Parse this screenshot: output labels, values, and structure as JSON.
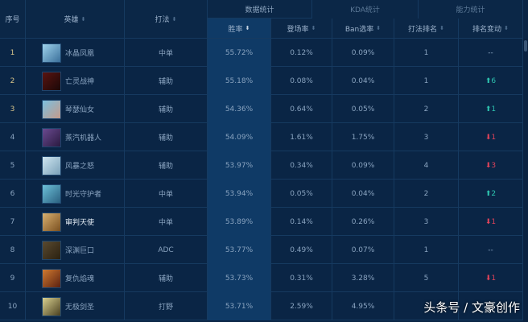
{
  "header": {
    "index": "序号",
    "hero": "英雄",
    "role": "打法",
    "groups": [
      {
        "label": "数据统计",
        "active": true
      },
      {
        "label": "KDA统计",
        "active": false
      },
      {
        "label": "能力统计",
        "active": false
      }
    ],
    "columns": [
      "胜率",
      "登场率",
      "Ban选率",
      "打法排名",
      "排名变动"
    ],
    "sorted_column": "胜率"
  },
  "colors": {
    "background": "#0a2545",
    "highlight": "#0f3a66",
    "up": "#2ec4b0",
    "down": "#e0435a"
  },
  "rows": [
    {
      "index": "1",
      "hero": "冰晶凤凰",
      "role": "中单",
      "win": "55.72%",
      "pick": "0.12%",
      "ban": "0.09%",
      "rank": "1",
      "change": "--",
      "dir": "none",
      "avatar": [
        "#9fd3ec",
        "#3a6f9a"
      ]
    },
    {
      "index": "2",
      "hero": "亡灵战神",
      "role": "辅助",
      "win": "55.18%",
      "pick": "0.08%",
      "ban": "0.04%",
      "rank": "1",
      "change": "6",
      "dir": "up",
      "avatar": [
        "#5a1410",
        "#1a0808"
      ]
    },
    {
      "index": "3",
      "hero": "琴瑟仙女",
      "role": "辅助",
      "win": "54.36%",
      "pick": "0.64%",
      "ban": "0.05%",
      "rank": "2",
      "change": "1",
      "dir": "up",
      "avatar": [
        "#7cc0e0",
        "#c59a8a"
      ]
    },
    {
      "index": "4",
      "hero": "蒸汽机器人",
      "role": "辅助",
      "win": "54.09%",
      "pick": "1.61%",
      "ban": "1.75%",
      "rank": "3",
      "change": "1",
      "dir": "down",
      "avatar": [
        "#6a4a90",
        "#2a1a40"
      ]
    },
    {
      "index": "5",
      "hero": "风暴之怒",
      "role": "辅助",
      "win": "53.97%",
      "pick": "0.34%",
      "ban": "0.09%",
      "rank": "4",
      "change": "3",
      "dir": "down",
      "avatar": [
        "#cfe6f0",
        "#7aa0b8"
      ]
    },
    {
      "index": "6",
      "hero": "时光守护者",
      "role": "中单",
      "win": "53.94%",
      "pick": "0.05%",
      "ban": "0.04%",
      "rank": "2",
      "change": "2",
      "dir": "up",
      "avatar": [
        "#6cc0d8",
        "#2a6080"
      ]
    },
    {
      "index": "7",
      "hero": "审判天使",
      "role": "中单",
      "win": "53.89%",
      "pick": "0.14%",
      "ban": "0.26%",
      "rank": "3",
      "change": "1",
      "dir": "down",
      "avatar": [
        "#d8b070",
        "#7a5020"
      ]
    },
    {
      "index": "8",
      "hero": "深渊巨口",
      "role": "ADC",
      "win": "53.77%",
      "pick": "0.49%",
      "ban": "0.07%",
      "rank": "1",
      "change": "--",
      "dir": "none",
      "avatar": [
        "#5a4a30",
        "#2a2010"
      ]
    },
    {
      "index": "9",
      "hero": "复仇焰魂",
      "role": "辅助",
      "win": "53.73%",
      "pick": "0.31%",
      "ban": "3.28%",
      "rank": "5",
      "change": "1",
      "dir": "down",
      "avatar": [
        "#d07a30",
        "#5a2010"
      ]
    },
    {
      "index": "10",
      "hero": "无极剑圣",
      "role": "打野",
      "win": "53.71%",
      "pick": "2.59%",
      "ban": "4.95%",
      "rank": "",
      "change": "",
      "dir": "none",
      "avatar": [
        "#d8d090",
        "#4a4020"
      ]
    }
  ],
  "watermark": "头条号 / 文豪创作"
}
